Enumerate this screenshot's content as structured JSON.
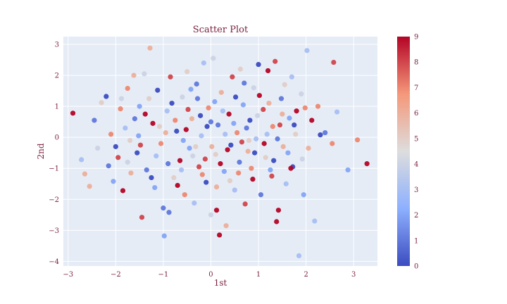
{
  "chart_data": {
    "type": "scatter",
    "title": "Scatter Plot",
    "xlabel": "1st",
    "ylabel": "2nd",
    "xlim": [
      -3.1,
      3.5
    ],
    "ylim": [
      -4.15,
      3.25
    ],
    "xticks": [
      -3,
      -2,
      -1,
      0,
      1,
      2,
      3
    ],
    "yticks": [
      -4,
      -3,
      -2,
      -1,
      0,
      1,
      2,
      3
    ],
    "grid": true,
    "colorscale": "coolwarm",
    "colorbar": {
      "min": 0,
      "max": 9,
      "ticks": [
        0,
        1,
        2,
        3,
        4,
        5,
        6,
        7,
        8,
        9
      ]
    },
    "colors": {
      "plot_bg": "#e5ecf6",
      "text": "#7a1f3d",
      "low": "#3b4cc0",
      "mid": "#dddddd",
      "high": "#b40426"
    },
    "points": [
      {
        "x": -2.9,
        "y": 0.78,
        "c": 9
      },
      {
        "x": -2.72,
        "y": -0.72,
        "c": 3
      },
      {
        "x": -2.65,
        "y": -1.18,
        "c": 6
      },
      {
        "x": -2.55,
        "y": -1.58,
        "c": 6
      },
      {
        "x": -2.45,
        "y": 0.55,
        "c": 1
      },
      {
        "x": -2.38,
        "y": -0.35,
        "c": 4
      },
      {
        "x": -2.3,
        "y": 1.12,
        "c": 5
      },
      {
        "x": -2.2,
        "y": 1.32,
        "c": 0
      },
      {
        "x": -2.15,
        "y": -0.92,
        "c": 1
      },
      {
        "x": -2.05,
        "y": -1.42,
        "c": 2
      },
      {
        "x": -1.95,
        "y": -0.65,
        "c": 8
      },
      {
        "x": -1.9,
        "y": 0.92,
        "c": 7
      },
      {
        "x": -1.85,
        "y": -1.72,
        "c": 9
      },
      {
        "x": -1.8,
        "y": 0.3,
        "c": 3
      },
      {
        "x": -1.75,
        "y": 1.58,
        "c": 7
      },
      {
        "x": -1.7,
        "y": -0.1,
        "c": 5
      },
      {
        "x": -1.62,
        "y": 2.0,
        "c": 6
      },
      {
        "x": -1.55,
        "y": -0.5,
        "c": 0
      },
      {
        "x": -1.5,
        "y": 1.0,
        "c": 2
      },
      {
        "x": -1.45,
        "y": -2.58,
        "c": 8
      },
      {
        "x": -1.4,
        "y": 2.05,
        "c": 4
      },
      {
        "x": -1.35,
        "y": -1.05,
        "c": 1
      },
      {
        "x": -1.28,
        "y": 2.88,
        "c": 6
      },
      {
        "x": -1.22,
        "y": 0.45,
        "c": 9
      },
      {
        "x": -1.18,
        "y": -1.62,
        "c": 2
      },
      {
        "x": -1.12,
        "y": 1.52,
        "c": 0
      },
      {
        "x": -1.05,
        "y": -0.2,
        "c": 7
      },
      {
        "x": -1.0,
        "y": -2.28,
        "c": 1
      },
      {
        "x": -0.98,
        "y": -3.18,
        "c": 2
      },
      {
        "x": -0.92,
        "y": 0.85,
        "c": 3
      },
      {
        "x": -0.88,
        "y": -2.42,
        "c": 1
      },
      {
        "x": -0.85,
        "y": 1.95,
        "c": 8
      },
      {
        "x": -0.78,
        "y": -1.3,
        "c": 5
      },
      {
        "x": -0.72,
        "y": 0.2,
        "c": 0
      },
      {
        "x": -0.65,
        "y": -0.75,
        "c": 9
      },
      {
        "x": -0.6,
        "y": 1.3,
        "c": 4
      },
      {
        "x": -0.55,
        "y": -1.85,
        "c": 7
      },
      {
        "x": -0.5,
        "y": 2.12,
        "c": 5
      },
      {
        "x": -0.45,
        "y": -0.35,
        "c": 2
      },
      {
        "x": -0.4,
        "y": 0.6,
        "c": 6
      },
      {
        "x": -0.35,
        "y": -2.12,
        "c": 3
      },
      {
        "x": -0.3,
        "y": 1.72,
        "c": 1
      },
      {
        "x": -0.25,
        "y": -0.95,
        "c": 8
      },
      {
        "x": -0.2,
        "y": 0.05,
        "c": 3
      },
      {
        "x": -0.15,
        "y": 2.4,
        "c": 3
      },
      {
        "x": -0.1,
        "y": -1.45,
        "c": 0
      },
      {
        "x": -0.05,
        "y": 0.95,
        "c": 7
      },
      {
        "x": 0.0,
        "y": -2.5,
        "c": 4
      },
      {
        "x": 0.05,
        "y": 2.55,
        "c": 4
      },
      {
        "x": 0.1,
        "y": -0.55,
        "c": 5
      },
      {
        "x": 0.12,
        "y": -2.35,
        "c": 9
      },
      {
        "x": 0.15,
        "y": 0.4,
        "c": 1
      },
      {
        "x": 0.18,
        "y": -3.15,
        "c": 9
      },
      {
        "x": 0.22,
        "y": 1.45,
        "c": 6
      },
      {
        "x": 0.28,
        "y": -1.1,
        "c": 2
      },
      {
        "x": 0.32,
        "y": -2.85,
        "c": 6
      },
      {
        "x": 0.38,
        "y": 0.75,
        "c": 9
      },
      {
        "x": 0.42,
        "y": -0.25,
        "c": 0
      },
      {
        "x": 0.45,
        "y": 1.95,
        "c": 8
      },
      {
        "x": 0.5,
        "y": -1.7,
        "c": 3
      },
      {
        "x": 0.55,
        "y": 0.15,
        "c": 7
      },
      {
        "x": 0.6,
        "y": -0.8,
        "c": 1
      },
      {
        "x": 0.62,
        "y": 2.2,
        "c": 5
      },
      {
        "x": 0.68,
        "y": 1.05,
        "c": 2
      },
      {
        "x": 0.72,
        "y": -2.15,
        "c": 8
      },
      {
        "x": 0.78,
        "y": -0.45,
        "c": 6
      },
      {
        "x": 0.82,
        "y": 0.55,
        "c": 0
      },
      {
        "x": 0.88,
        "y": -1.35,
        "c": 9
      },
      {
        "x": 0.9,
        "y": 1.6,
        "c": 4
      },
      {
        "x": 0.95,
        "y": -0.05,
        "c": 3
      },
      {
        "x": 1.0,
        "y": 2.35,
        "c": 0
      },
      {
        "x": 1.05,
        "y": -1.85,
        "c": 1
      },
      {
        "x": 1.1,
        "y": 0.9,
        "c": 8
      },
      {
        "x": 1.15,
        "y": -0.65,
        "c": 5
      },
      {
        "x": 1.2,
        "y": 2.15,
        "c": 9
      },
      {
        "x": 1.25,
        "y": -1.05,
        "c": 2
      },
      {
        "x": 1.3,
        "y": 0.35,
        "c": 7
      },
      {
        "x": 1.35,
        "y": 2.45,
        "c": 8
      },
      {
        "x": 1.38,
        "y": -2.72,
        "c": 9
      },
      {
        "x": 1.42,
        "y": -2.35,
        "c": 9
      },
      {
        "x": 1.48,
        "y": 1.25,
        "c": 1
      },
      {
        "x": 1.52,
        "y": -0.3,
        "c": 6
      },
      {
        "x": 1.58,
        "y": -1.5,
        "c": 3
      },
      {
        "x": 1.65,
        "y": 0.62,
        "c": 2
      },
      {
        "x": 1.7,
        "y": 1.95,
        "c": 3
      },
      {
        "x": 1.72,
        "y": -0.95,
        "c": 0
      },
      {
        "x": 1.78,
        "y": 0.1,
        "c": 5
      },
      {
        "x": 1.85,
        "y": -3.82,
        "c": 3
      },
      {
        "x": 1.9,
        "y": 1.4,
        "c": 4
      },
      {
        "x": 1.95,
        "y": -1.85,
        "c": 2
      },
      {
        "x": 1.98,
        "y": 0.95,
        "c": 7
      },
      {
        "x": 2.02,
        "y": 2.8,
        "c": 3
      },
      {
        "x": 2.05,
        "y": -0.35,
        "c": 6
      },
      {
        "x": 2.12,
        "y": 0.55,
        "c": 9
      },
      {
        "x": 2.18,
        "y": -2.7,
        "c": 3
      },
      {
        "x": 2.25,
        "y": 1.0,
        "c": 7
      },
      {
        "x": 2.3,
        "y": 0.08,
        "c": 0
      },
      {
        "x": 2.4,
        "y": 0.15,
        "c": 1
      },
      {
        "x": 2.55,
        "y": -0.2,
        "c": 7
      },
      {
        "x": 2.58,
        "y": 2.42,
        "c": 8
      },
      {
        "x": 2.65,
        "y": 0.82,
        "c": 3
      },
      {
        "x": 2.88,
        "y": -1.05,
        "c": 2
      },
      {
        "x": 3.08,
        "y": -0.08,
        "c": 7
      },
      {
        "x": 3.28,
        "y": -0.85,
        "c": 9
      },
      {
        "x": -1.75,
        "y": -0.8,
        "c": 4
      },
      {
        "x": -1.6,
        "y": 0.6,
        "c": 1
      },
      {
        "x": -1.48,
        "y": -0.25,
        "c": 8
      },
      {
        "x": -1.3,
        "y": 1.25,
        "c": 5
      },
      {
        "x": -1.15,
        "y": -0.6,
        "c": 3
      },
      {
        "x": -0.95,
        "y": 0.15,
        "c": 6
      },
      {
        "x": -0.82,
        "y": 1.1,
        "c": 0
      },
      {
        "x": -0.7,
        "y": -1.55,
        "c": 9
      },
      {
        "x": -0.58,
        "y": -0.1,
        "c": 2
      },
      {
        "x": -0.48,
        "y": 0.9,
        "c": 8
      },
      {
        "x": -0.38,
        "y": -0.6,
        "c": 4
      },
      {
        "x": -0.28,
        "y": 1.25,
        "c": 1
      },
      {
        "x": -0.18,
        "y": -1.2,
        "c": 7
      },
      {
        "x": -0.08,
        "y": 0.35,
        "c": 0
      },
      {
        "x": 0.02,
        "y": -0.3,
        "c": 6
      },
      {
        "x": 0.08,
        "y": 1.15,
        "c": 2
      },
      {
        "x": 0.2,
        "y": -0.85,
        "c": 9
      },
      {
        "x": 0.3,
        "y": 0.1,
        "c": 3
      },
      {
        "x": 0.4,
        "y": -1.4,
        "c": 5
      },
      {
        "x": 0.52,
        "y": 1.3,
        "c": 0
      },
      {
        "x": 0.65,
        "y": -0.15,
        "c": 8
      },
      {
        "x": 0.75,
        "y": 0.3,
        "c": 1
      },
      {
        "x": 0.85,
        "y": -1.0,
        "c": 7
      },
      {
        "x": 0.98,
        "y": 0.7,
        "c": 4
      },
      {
        "x": 1.12,
        "y": -0.2,
        "c": 9
      },
      {
        "x": 1.22,
        "y": 1.1,
        "c": 6
      },
      {
        "x": 1.32,
        "y": -0.75,
        "c": 0
      },
      {
        "x": 1.45,
        "y": 0.4,
        "c": 8
      },
      {
        "x": 1.55,
        "y": 1.7,
        "c": 5
      },
      {
        "x": 1.62,
        "y": -0.5,
        "c": 2
      },
      {
        "x": 1.8,
        "y": 0.85,
        "c": 9
      },
      {
        "x": 1.92,
        "y": -0.7,
        "c": 4
      },
      {
        "x": -2.1,
        "y": 0.1,
        "c": 7
      },
      {
        "x": -2.0,
        "y": -0.3,
        "c": 0
      },
      {
        "x": -1.88,
        "y": 1.25,
        "c": 4
      },
      {
        "x": -1.68,
        "y": -1.15,
        "c": 6
      },
      {
        "x": -1.52,
        "y": 0.05,
        "c": 2
      },
      {
        "x": -1.38,
        "y": 0.75,
        "c": 9
      },
      {
        "x": -1.25,
        "y": -1.3,
        "c": 0
      },
      {
        "x": -1.08,
        "y": 0.35,
        "c": 5
      },
      {
        "x": -0.9,
        "y": -0.85,
        "c": 1
      },
      {
        "x": -0.75,
        "y": 0.55,
        "c": 7
      },
      {
        "x": -0.62,
        "y": -1.05,
        "c": 3
      },
      {
        "x": -0.52,
        "y": 0.25,
        "c": 9
      },
      {
        "x": -0.42,
        "y": 1.55,
        "c": 2
      },
      {
        "x": -0.32,
        "y": -0.3,
        "c": 5
      },
      {
        "x": -0.22,
        "y": 0.7,
        "c": 0
      },
      {
        "x": -0.12,
        "y": -0.7,
        "c": 8
      },
      {
        "x": 0.0,
        "y": 0.5,
        "c": 1
      },
      {
        "x": 0.12,
        "y": -1.6,
        "c": 6
      },
      {
        "x": 0.25,
        "y": 0.85,
        "c": 3
      },
      {
        "x": 0.35,
        "y": -0.4,
        "c": 9
      },
      {
        "x": 0.48,
        "y": 0.45,
        "c": 2
      },
      {
        "x": 0.58,
        "y": -1.15,
        "c": 7
      },
      {
        "x": 0.7,
        "y": 1.75,
        "c": 1
      },
      {
        "x": 0.8,
        "y": -0.1,
        "c": 5
      },
      {
        "x": 0.92,
        "y": -0.5,
        "c": 0
      },
      {
        "x": 1.02,
        "y": 1.35,
        "c": 9
      },
      {
        "x": 1.18,
        "y": 0.1,
        "c": 3
      },
      {
        "x": 1.28,
        "y": -1.25,
        "c": 8
      },
      {
        "x": 1.4,
        "y": -0.05,
        "c": 1
      },
      {
        "x": 1.5,
        "y": 0.75,
        "c": 6
      },
      {
        "x": 1.68,
        "y": -1.0,
        "c": 9
      },
      {
        "x": 1.75,
        "y": 0.4,
        "c": 0
      }
    ]
  }
}
